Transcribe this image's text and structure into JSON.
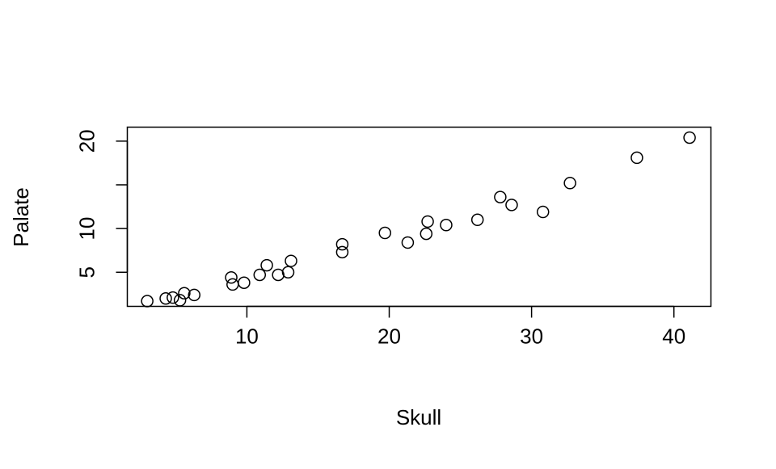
{
  "chart_data": {
    "type": "scatter",
    "title": "",
    "xlabel": "Skull",
    "ylabel": "Palate",
    "xlim": [
      1.6,
      42.6
    ],
    "ylim": [
      1.1,
      21.6
    ],
    "xticks": [
      10,
      20,
      30,
      40
    ],
    "xtick_labels": [
      "10",
      "20",
      "30",
      "40"
    ],
    "yticks": [
      5,
      10,
      15,
      20
    ],
    "ytick_labels": [
      "5",
      "10",
      "",
      "20"
    ],
    "grid": false,
    "legend": "none",
    "marker": "open-circle",
    "color": "#000000",
    "points": [
      {
        "x": 3.0,
        "y": 1.7
      },
      {
        "x": 4.3,
        "y": 2.0
      },
      {
        "x": 4.8,
        "y": 2.1
      },
      {
        "x": 5.3,
        "y": 1.8
      },
      {
        "x": 5.6,
        "y": 2.6
      },
      {
        "x": 6.3,
        "y": 2.4
      },
      {
        "x": 8.9,
        "y": 4.4
      },
      {
        "x": 9.0,
        "y": 3.6
      },
      {
        "x": 9.8,
        "y": 3.8
      },
      {
        "x": 10.9,
        "y": 4.7
      },
      {
        "x": 11.4,
        "y": 5.8
      },
      {
        "x": 12.2,
        "y": 4.7
      },
      {
        "x": 12.9,
        "y": 5.0
      },
      {
        "x": 13.1,
        "y": 6.3
      },
      {
        "x": 16.7,
        "y": 7.3
      },
      {
        "x": 16.7,
        "y": 8.2
      },
      {
        "x": 19.7,
        "y": 9.5
      },
      {
        "x": 21.3,
        "y": 8.4
      },
      {
        "x": 22.6,
        "y": 9.4
      },
      {
        "x": 22.7,
        "y": 10.8
      },
      {
        "x": 24.0,
        "y": 10.4
      },
      {
        "x": 26.2,
        "y": 11.0
      },
      {
        "x": 27.8,
        "y": 13.6
      },
      {
        "x": 28.6,
        "y": 12.7
      },
      {
        "x": 30.8,
        "y": 11.9
      },
      {
        "x": 32.7,
        "y": 15.2
      },
      {
        "x": 37.4,
        "y": 18.1
      },
      {
        "x": 41.1,
        "y": 20.4
      }
    ]
  }
}
